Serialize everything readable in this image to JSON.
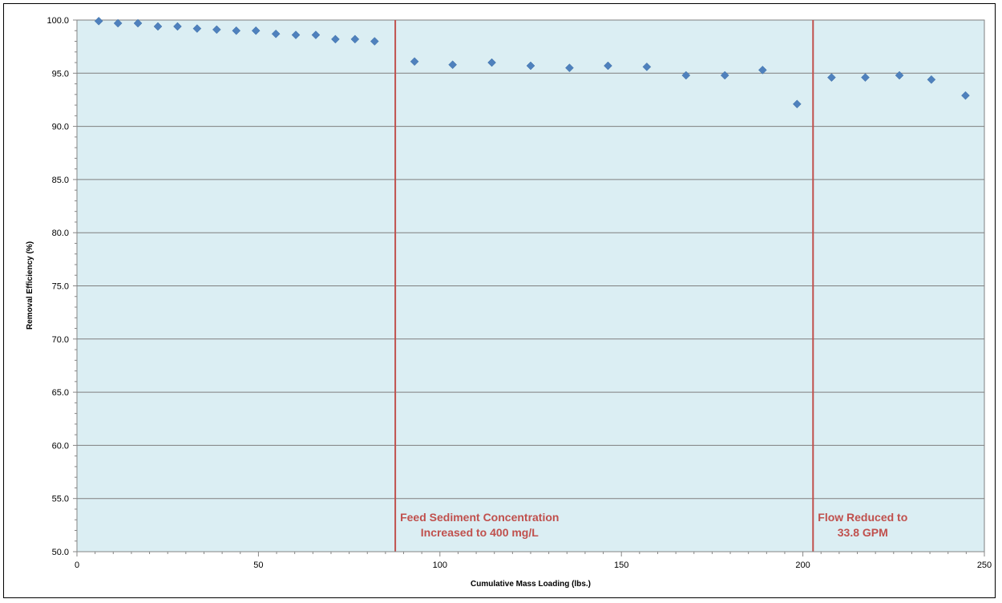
{
  "chart_data": {
    "type": "scatter",
    "title": "",
    "xlabel": "Cumulative Mass Loading (lbs.)",
    "ylabel": "Removal Efficiency (%)",
    "xlim": [
      0,
      250
    ],
    "ylim": [
      50,
      100
    ],
    "x_ticks": [
      "0",
      "50",
      "100",
      "150",
      "200",
      "250"
    ],
    "y_ticks": [
      "50.0",
      "55.0",
      "60.0",
      "65.0",
      "70.0",
      "75.0",
      "80.0",
      "85.0",
      "90.0",
      "95.0",
      "100.0"
    ],
    "grid": "horizontal",
    "legend": "none",
    "colors": {
      "plot_background": "#dbeef3",
      "marker": "#4f81bd",
      "reference_line": "#c0504d",
      "gridline": "#7f7f7f"
    },
    "points": [
      {
        "x": 6,
        "y": 99.9
      },
      {
        "x": 11.3,
        "y": 99.7
      },
      {
        "x": 16.8,
        "y": 99.7
      },
      {
        "x": 22.3,
        "y": 99.4
      },
      {
        "x": 27.7,
        "y": 99.4
      },
      {
        "x": 33.1,
        "y": 99.2
      },
      {
        "x": 38.5,
        "y": 99.1
      },
      {
        "x": 43.9,
        "y": 99.0
      },
      {
        "x": 49.3,
        "y": 99.0
      },
      {
        "x": 54.8,
        "y": 98.7
      },
      {
        "x": 60.3,
        "y": 98.6
      },
      {
        "x": 65.8,
        "y": 98.6
      },
      {
        "x": 71.2,
        "y": 98.2
      },
      {
        "x": 76.6,
        "y": 98.2
      },
      {
        "x": 82.0,
        "y": 98.0
      },
      {
        "x": 93.0,
        "y": 96.1
      },
      {
        "x": 103.5,
        "y": 95.8
      },
      {
        "x": 114.3,
        "y": 96.0
      },
      {
        "x": 125.0,
        "y": 95.7
      },
      {
        "x": 135.7,
        "y": 95.5
      },
      {
        "x": 146.3,
        "y": 95.7
      },
      {
        "x": 157.0,
        "y": 95.6
      },
      {
        "x": 167.8,
        "y": 94.8
      },
      {
        "x": 178.5,
        "y": 94.8
      },
      {
        "x": 188.9,
        "y": 95.3
      },
      {
        "x": 198.4,
        "y": 92.1
      },
      {
        "x": 207.9,
        "y": 94.6
      },
      {
        "x": 217.2,
        "y": 94.6
      },
      {
        "x": 226.6,
        "y": 94.8
      },
      {
        "x": 235.4,
        "y": 94.4
      },
      {
        "x": 244.8,
        "y": 92.9
      }
    ],
    "reference_lines": [
      {
        "x": 87.7,
        "label_lines": [
          "Feed Sediment Concentration",
          "Increased to 400 mg/L"
        ]
      },
      {
        "x": 202.8,
        "label_lines": [
          "Flow Reduced to",
          "33.8 GPM"
        ]
      }
    ]
  }
}
